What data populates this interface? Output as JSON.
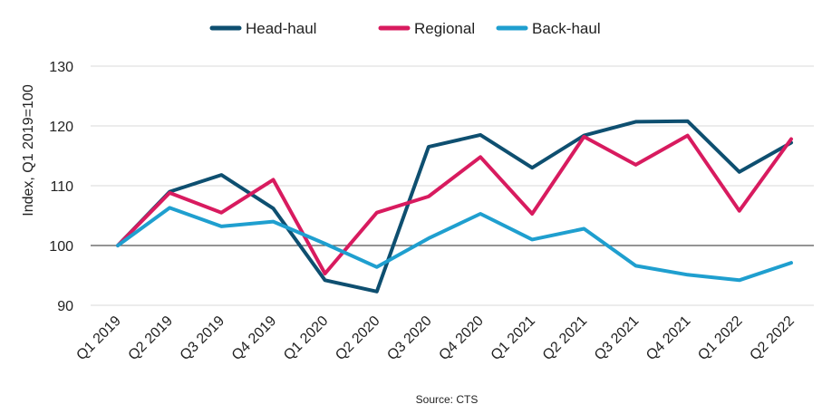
{
  "chart_data": {
    "type": "line",
    "categories": [
      "Q1 2019",
      "Q2 2019",
      "Q3 2019",
      "Q4 2019",
      "Q1 2020",
      "Q2 2020",
      "Q3 2020",
      "Q4 2020",
      "Q1 2021",
      "Q2 2021",
      "Q3 2021",
      "Q4 2021",
      "Q1 2022",
      "Q2 2022"
    ],
    "series": [
      {
        "name": "Head-haul",
        "color": "#0e4f70",
        "values": [
          100,
          109,
          111.8,
          106.2,
          94.2,
          92.3,
          116.5,
          118.5,
          113,
          118.4,
          120.7,
          120.8,
          112.3,
          117.2
        ]
      },
      {
        "name": "Regional",
        "color": "#d81b5f",
        "values": [
          100,
          108.8,
          105.5,
          111,
          95.3,
          105.5,
          108.2,
          114.8,
          105.3,
          118.2,
          113.5,
          118.4,
          105.8,
          117.8
        ]
      },
      {
        "name": "Back-haul",
        "color": "#1f9fcf",
        "values": [
          100,
          106.3,
          103.2,
          104,
          100.3,
          96.4,
          101.2,
          105.3,
          101,
          102.8,
          96.6,
          95.1,
          94.2,
          97.1
        ]
      }
    ],
    "ylabel": "Index, Q1 2019=100",
    "xlabel": "",
    "ylim": [
      90,
      130
    ],
    "yticks": [
      90,
      100,
      110,
      120,
      130
    ],
    "reference_line": 100,
    "grid": true,
    "legend_position": "top-center",
    "source": "Source: CTS"
  }
}
